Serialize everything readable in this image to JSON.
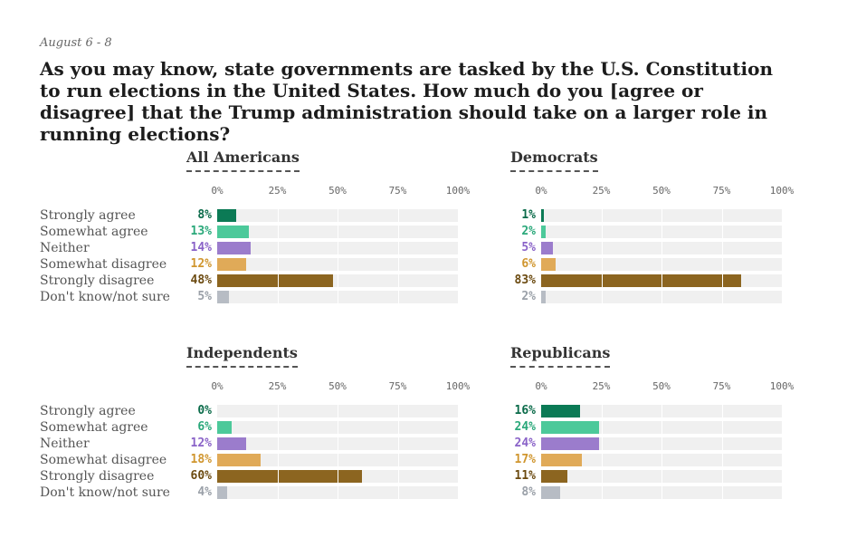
{
  "header": {
    "date": "August 6 - 8",
    "title": "As you may know, state governments are tasked by the U.S. Constitution to run elections in the United States. How much do you [agree or disagree] that the Trump administration should take on a larger role in running elections?"
  },
  "chart_data": [
    {
      "type": "bar",
      "title": "All Americans",
      "categories": [
        "Strongly agree",
        "Somewhat agree",
        "Neither",
        "Somewhat disagree",
        "Strongly disagree",
        "Don't know/not sure"
      ],
      "values": [
        8,
        13,
        14,
        12,
        48,
        5
      ],
      "value_labels": [
        "8%",
        "13%",
        "14%",
        "12%",
        "48%",
        "5%"
      ],
      "xticks": [
        "0%",
        "25%",
        "50%",
        "75%",
        "100%"
      ],
      "xlim": [
        0,
        100
      ]
    },
    {
      "type": "bar",
      "title": "Democrats",
      "categories": [
        "Strongly agree",
        "Somewhat agree",
        "Neither",
        "Somewhat disagree",
        "Strongly disagree",
        "Don't know/not sure"
      ],
      "values": [
        1,
        2,
        5,
        6,
        83,
        2
      ],
      "value_labels": [
        "1%",
        "2%",
        "5%",
        "6%",
        "83%",
        "2%"
      ],
      "xticks": [
        "0%",
        "25%",
        "50%",
        "75%",
        "100%"
      ],
      "xlim": [
        0,
        100
      ]
    },
    {
      "type": "bar",
      "title": "Independents",
      "categories": [
        "Strongly agree",
        "Somewhat agree",
        "Neither",
        "Somewhat disagree",
        "Strongly disagree",
        "Don't know/not sure"
      ],
      "values": [
        0,
        6,
        12,
        18,
        60,
        4
      ],
      "value_labels": [
        "0%",
        "6%",
        "12%",
        "18%",
        "60%",
        "4%"
      ],
      "xticks": [
        "0%",
        "25%",
        "50%",
        "75%",
        "100%"
      ],
      "xlim": [
        0,
        100
      ]
    },
    {
      "type": "bar",
      "title": "Republicans",
      "categories": [
        "Strongly agree",
        "Somewhat agree",
        "Neither",
        "Somewhat disagree",
        "Strongly disagree",
        "Don't know/not sure"
      ],
      "values": [
        16,
        24,
        24,
        17,
        11,
        8
      ],
      "value_labels": [
        "16%",
        "24%",
        "24%",
        "17%",
        "11%",
        "8%"
      ],
      "xticks": [
        "0%",
        "25%",
        "50%",
        "75%",
        "100%"
      ],
      "xlim": [
        0,
        100
      ]
    }
  ],
  "colors": {
    "category_bars": [
      "#0b7a55",
      "#4cc99a",
      "#9b7ccc",
      "#e0aa58",
      "#8c6520",
      "#b7bcc4"
    ],
    "category_labels": [
      "#0b6b4a",
      "#2aa87a",
      "#8a63c8",
      "#d0962f",
      "#6b4a10",
      "#9aa0a8"
    ],
    "track": "#f0f0f0"
  }
}
